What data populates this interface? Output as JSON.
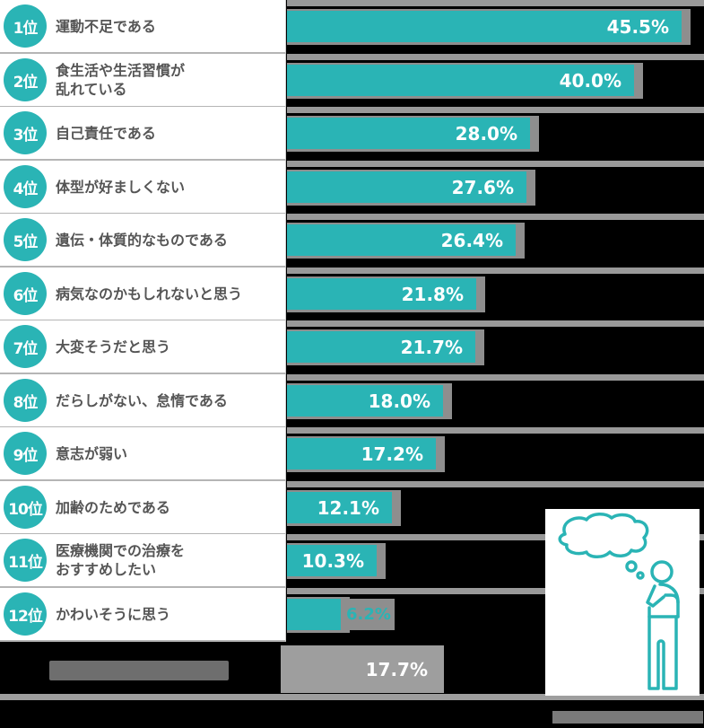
{
  "chart_data": {
    "type": "bar",
    "orientation": "horizontal",
    "title": "",
    "xlabel": "",
    "ylabel": "",
    "categories": [
      "運動不足である",
      "食生活や生活習慣が乱れている",
      "自己責任である",
      "体型が好ましくない",
      "遺伝・体質的なものである",
      "病気なのかもしれないと思う",
      "大変そうだと思う",
      "だらしがない、怠惰である",
      "意志が弱い",
      "加齢のためである",
      "医療機関での治療をおすすめしたい",
      "かわいそうに思う"
    ],
    "values": [
      45.5,
      40.0,
      28.0,
      27.6,
      26.4,
      21.8,
      21.7,
      18.0,
      17.2,
      12.1,
      10.3,
      6.2
    ],
    "unit": "%",
    "grid": false,
    "legend": null,
    "xlim": [
      0,
      50
    ],
    "extra_row": {
      "label": "(illegible)",
      "value": 17.7
    }
  },
  "colors": {
    "accent": "#2ab4b5",
    "label_text": "#555555",
    "other_bar": "#9e9e9e",
    "background": "#000000"
  },
  "rows": [
    {
      "rank": "1位",
      "label": "運動不足である",
      "value_label": "45.5%",
      "value": 45.5
    },
    {
      "rank": "2位",
      "label": "食生活や生活習慣が\n乱れている",
      "value_label": "40.0%",
      "value": 40.0
    },
    {
      "rank": "3位",
      "label": "自己責任である",
      "value_label": "28.0%",
      "value": 28.0
    },
    {
      "rank": "4位",
      "label": "体型が好ましくない",
      "value_label": "27.6%",
      "value": 27.6
    },
    {
      "rank": "5位",
      "label": "遺伝・体質的なものである",
      "value_label": "26.4%",
      "value": 26.4
    },
    {
      "rank": "6位",
      "label": "病気なのかもしれないと思う",
      "value_label": "21.8%",
      "value": 21.8
    },
    {
      "rank": "7位",
      "label": "大変そうだと思う",
      "value_label": "21.7%",
      "value": 21.7
    },
    {
      "rank": "8位",
      "label": "だらしがない、怠惰である",
      "value_label": "18.0%",
      "value": 18.0
    },
    {
      "rank": "9位",
      "label": "意志が弱い",
      "value_label": "17.2%",
      "value": 17.2
    },
    {
      "rank": "10位",
      "label": "加齢のためである",
      "value_label": "12.1%",
      "value": 12.1
    },
    {
      "rank": "11位",
      "label": "医療機関での治療を\nおすすめしたい",
      "value_label": "10.3%",
      "value": 10.3
    },
    {
      "rank": "12位",
      "label": "かわいそうに思う",
      "value_label": "6.2%",
      "value": 6.2
    }
  ],
  "other_row": {
    "label": "",
    "value_label": "17.7%"
  },
  "illustration": {
    "icon": "thinking-person-icon"
  },
  "caption": ""
}
